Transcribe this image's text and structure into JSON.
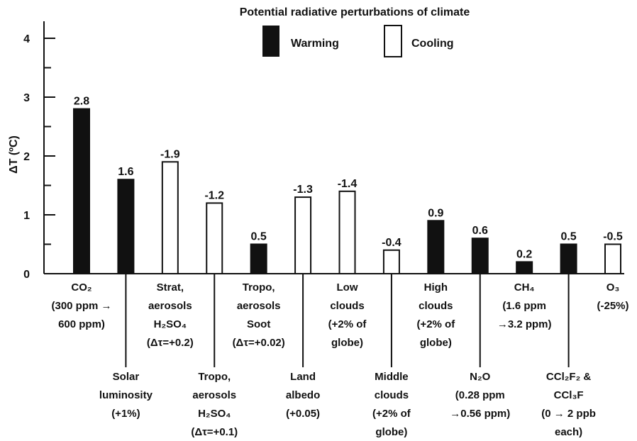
{
  "chart_data": {
    "type": "bar",
    "title": "Potential radiative perturbations of climate",
    "ylabel": "ΔT (ºC)",
    "ylim": [
      0,
      4
    ],
    "y_ticks": [
      "0",
      "1",
      "2",
      "3",
      "4"
    ],
    "legend": {
      "placement": "top-center",
      "items": [
        {
          "label": "Warming",
          "color": "#111111",
          "fill": "solid"
        },
        {
          "label": "Cooling",
          "color": "#ffffff",
          "fill": "outline"
        }
      ]
    },
    "categories": [
      {
        "lines": [
          "CO₂",
          "(300 ppm →",
          "600 ppm)"
        ],
        "value": 2.8,
        "label": "2.8",
        "kind": "warming",
        "label_row": "top"
      },
      {
        "lines": [
          "Solar",
          "luminosity",
          "(+1%)"
        ],
        "value": 1.6,
        "label": "1.6",
        "kind": "warming",
        "label_row": "bottom"
      },
      {
        "lines": [
          "Strat,",
          "aerosols",
          "H₂SO₄",
          "(Δτ=+0.2)"
        ],
        "value": 1.9,
        "label": "-1.9",
        "kind": "cooling",
        "label_row": "top"
      },
      {
        "lines": [
          "Tropo,",
          "aerosols",
          "H₂SO₄",
          "(Δτ=+0.1)"
        ],
        "value": 1.2,
        "label": "-1.2",
        "kind": "cooling",
        "label_row": "bottom"
      },
      {
        "lines": [
          "Tropo,",
          "aerosols",
          "Soot",
          "(Δτ=+0.02)"
        ],
        "value": 0.5,
        "label": "0.5",
        "kind": "warming",
        "label_row": "top"
      },
      {
        "lines": [
          "Land",
          "albedo",
          "(+0.05)"
        ],
        "value": 1.3,
        "label": "-1.3",
        "kind": "cooling",
        "label_row": "bottom"
      },
      {
        "lines": [
          "Low",
          "clouds",
          "(+2% of",
          "globe)"
        ],
        "value": 1.4,
        "label": "-1.4",
        "kind": "cooling",
        "label_row": "top"
      },
      {
        "lines": [
          "Middle",
          "clouds",
          "(+2% of",
          "globe)"
        ],
        "value": 0.4,
        "label": "-0.4",
        "kind": "cooling",
        "label_row": "bottom"
      },
      {
        "lines": [
          "High",
          "clouds",
          "(+2% of",
          "globe)"
        ],
        "value": 0.9,
        "label": "0.9",
        "kind": "warming",
        "label_row": "top"
      },
      {
        "lines": [
          "N₂O",
          "(0.28 ppm",
          "→0.56 ppm)"
        ],
        "value": 0.6,
        "label": "0.6",
        "kind": "warming",
        "label_row": "bottom"
      },
      {
        "lines": [
          "CH₄",
          "(1.6 ppm",
          "→3.2 ppm)"
        ],
        "value": 0.2,
        "label": "0.2",
        "kind": "warming",
        "label_row": "top"
      },
      {
        "lines": [
          "CCl₂F₂ &",
          "CCl₃F",
          "(0 → 2 ppb",
          "each)"
        ],
        "value": 0.5,
        "label": "0.5",
        "kind": "warming",
        "label_row": "bottom"
      },
      {
        "lines": [
          "O₃",
          "(-25%)"
        ],
        "value": 0.5,
        "label": "-0.5",
        "kind": "cooling",
        "label_row": "top"
      }
    ]
  }
}
